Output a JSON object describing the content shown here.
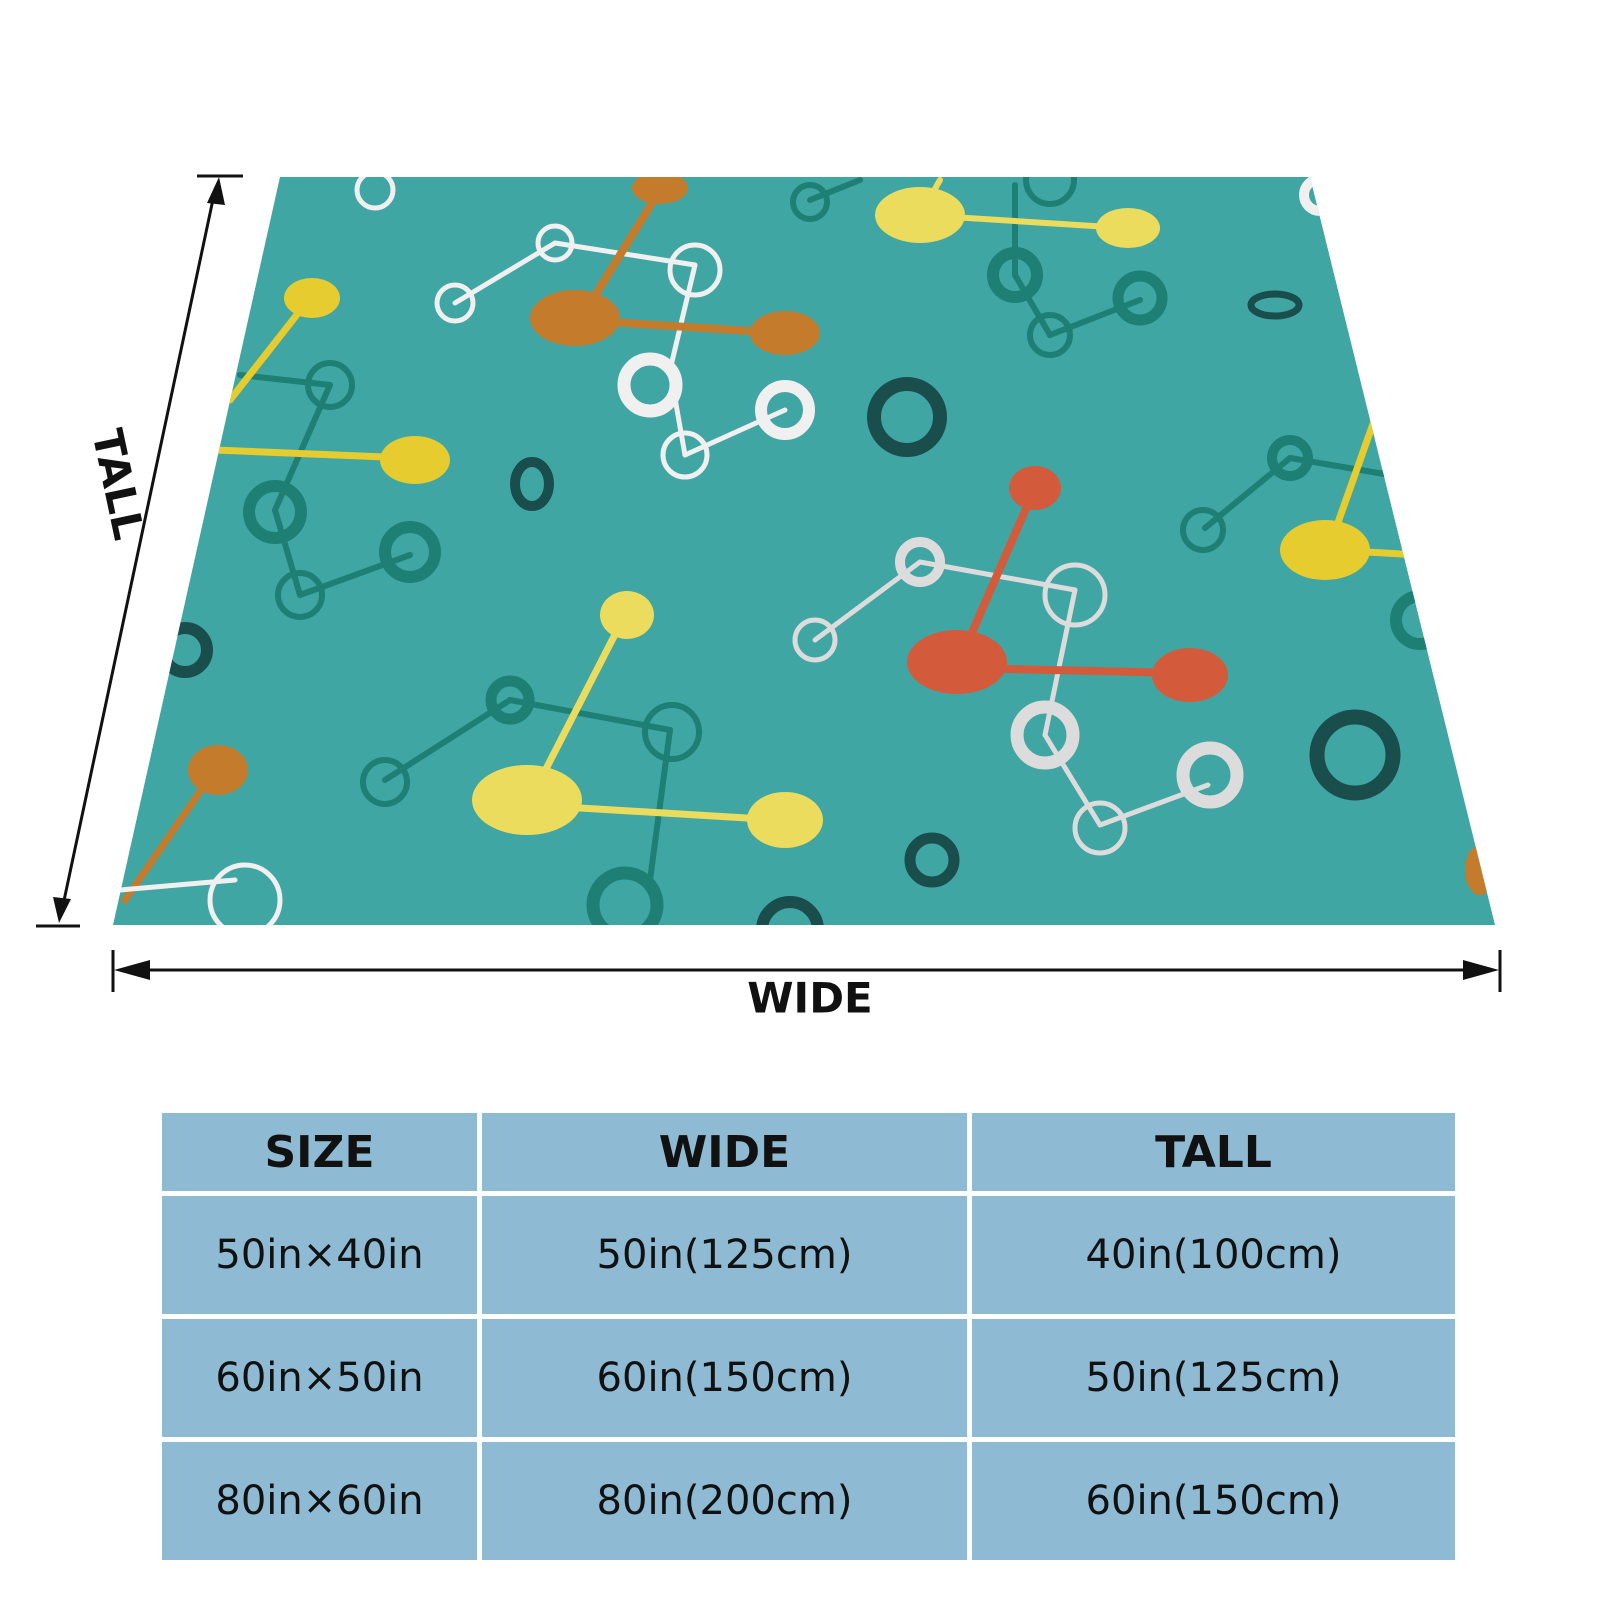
{
  "dimensions": {
    "height_label": "TALL",
    "width_label": "WIDE"
  },
  "table": {
    "header": [
      "SIZE",
      "WIDE",
      "TALL"
    ],
    "rows": [
      [
        "50in×40in",
        "50in(125cm)",
        "40in(100cm)"
      ],
      [
        "60in×50in",
        "60in(150cm)",
        "50in(125cm)"
      ],
      [
        "80in×60in",
        "80in(200cm)",
        "60in(150cm)"
      ]
    ]
  }
}
